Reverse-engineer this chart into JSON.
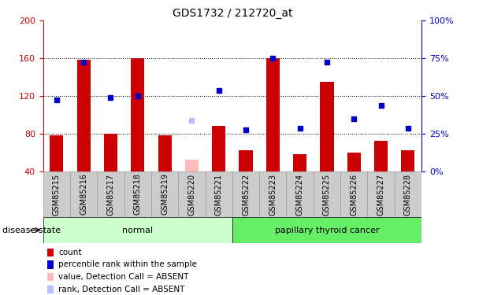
{
  "title": "GDS1732 / 212720_at",
  "samples": [
    "GSM85215",
    "GSM85216",
    "GSM85217",
    "GSM85218",
    "GSM85219",
    "GSM85220",
    "GSM85221",
    "GSM85222",
    "GSM85223",
    "GSM85224",
    "GSM85225",
    "GSM85226",
    "GSM85227",
    "GSM85228"
  ],
  "red_values": [
    78,
    158,
    80,
    160,
    78,
    null,
    88,
    62,
    160,
    58,
    135,
    60,
    72,
    62
  ],
  "blue_values": [
    116,
    156,
    118,
    120,
    null,
    null,
    126,
    84,
    160,
    86,
    156,
    96,
    110,
    86
  ],
  "absent_red": [
    null,
    null,
    null,
    null,
    null,
    52,
    null,
    null,
    null,
    null,
    null,
    null,
    null,
    null
  ],
  "absent_blue": [
    null,
    null,
    null,
    null,
    null,
    94,
    null,
    null,
    null,
    null,
    null,
    null,
    null,
    null
  ],
  "normal_group": [
    0,
    1,
    2,
    3,
    4,
    5,
    6
  ],
  "cancer_group": [
    7,
    8,
    9,
    10,
    11,
    12,
    13
  ],
  "ylim_left": [
    40,
    200
  ],
  "ylim_right": [
    0,
    100
  ],
  "yticks_left": [
    40,
    80,
    120,
    160,
    200
  ],
  "yticks_right": [
    0,
    25,
    50,
    75,
    100
  ],
  "ytick_right_labels": [
    "0%",
    "25%",
    "50%",
    "75%",
    "100%"
  ],
  "grid_values": [
    80,
    120,
    160
  ],
  "bar_width": 0.5,
  "bar_color_red": "#cc0000",
  "bar_color_blue": "#0000cc",
  "absent_bar_color_red": "#ffbbbb",
  "absent_bar_color_blue": "#bbbbff",
  "normal_bg_light": "#ccffcc",
  "cancer_bg": "#66ee66",
  "tick_area_bg": "#cccccc",
  "tick_area_border": "#999999",
  "label_normal": "normal",
  "label_cancer": "papillary thyroid cancer",
  "disease_state_label": "disease state",
  "legend_items": [
    {
      "label": "count",
      "color": "#cc0000"
    },
    {
      "label": "percentile rank within the sample",
      "color": "#0000cc"
    },
    {
      "label": "value, Detection Call = ABSENT",
      "color": "#ffbbbb"
    },
    {
      "label": "rank, Detection Call = ABSENT",
      "color": "#bbbbff"
    }
  ]
}
